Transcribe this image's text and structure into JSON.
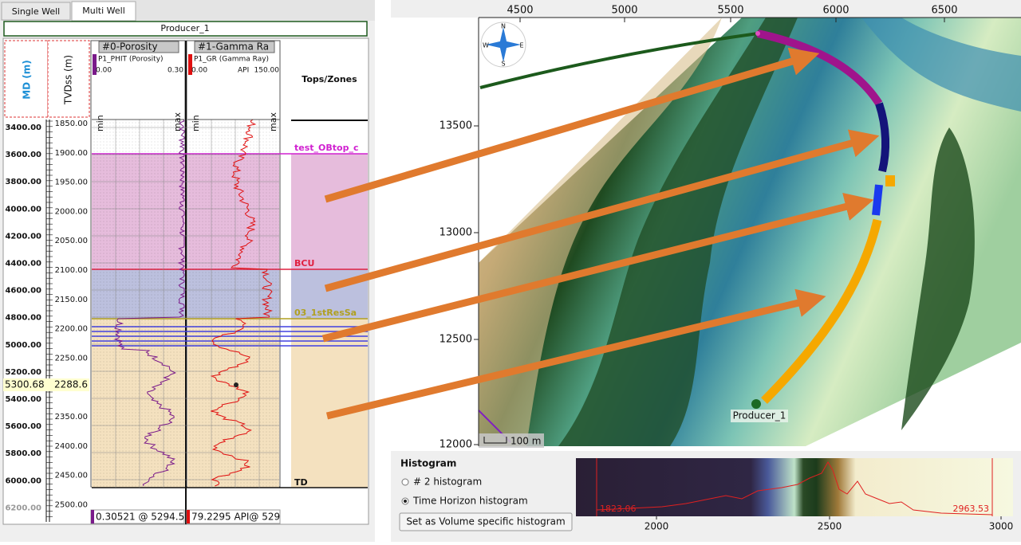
{
  "tabs": [
    "Single Well",
    "Multi Well"
  ],
  "well_name": "Producer_1",
  "log_panel": {
    "md_header": "MD (m)",
    "tvd_header": "TVDss (m)",
    "md_ticks": [
      "3400.00",
      "3600.00",
      "3800.00",
      "4000.00",
      "4200.00",
      "4400.00",
      "4600.00",
      "4800.00",
      "5000.00",
      "5200.00",
      "5400.00",
      "5600.00",
      "5800.00",
      "6000.00",
      "6200.00"
    ],
    "tvd_ticks": [
      "1850.00",
      "1900.00",
      "1950.00",
      "2000.00",
      "2050.00",
      "2100.00",
      "2150.00",
      "2200.00",
      "2250.00",
      "2300.00",
      "2350.00",
      "2400.00",
      "2450.00",
      "2500.00"
    ],
    "tracks": [
      {
        "title": "#0-Porosity",
        "curve": "P1_PHIT (Porosity)",
        "min": "0.00",
        "unit": "",
        "max": "0.30",
        "readout": "0.30521 @ 5294.5"
      },
      {
        "title": "#1-Gamma Ra",
        "curve": "P1_GR (Gamma Ray)",
        "min": "0.00",
        "unit": "API",
        "max": "150.00",
        "readout": "79.2295 API@ 529"
      }
    ],
    "scale_labels": [
      "min",
      "max"
    ],
    "tops_title": "Tops/Zones",
    "tops": [
      "test_OBtop_c",
      "BCU",
      "03_1stResSa",
      "TD"
    ],
    "cursor_md": "5300.68",
    "cursor_tvd": "2288.6"
  },
  "map": {
    "x_ticks": [
      "4500",
      "5000",
      "5500",
      "6000",
      "6500"
    ],
    "y_ticks": [
      "13500",
      "13000",
      "12500",
      "12000"
    ],
    "compass": [
      "N",
      "W",
      "E",
      "S"
    ],
    "well_label": "Producer_1",
    "scale_bar": "100 m"
  },
  "histogram": {
    "title": "Histogram",
    "options": [
      "# 2 histogram",
      "Time Horizon histogram"
    ],
    "button": "Set as Volume specific histogram",
    "x_ticks": [
      "2000",
      "2500",
      "3000"
    ],
    "min_label": "1823.06",
    "max_label": "2963.53"
  }
}
